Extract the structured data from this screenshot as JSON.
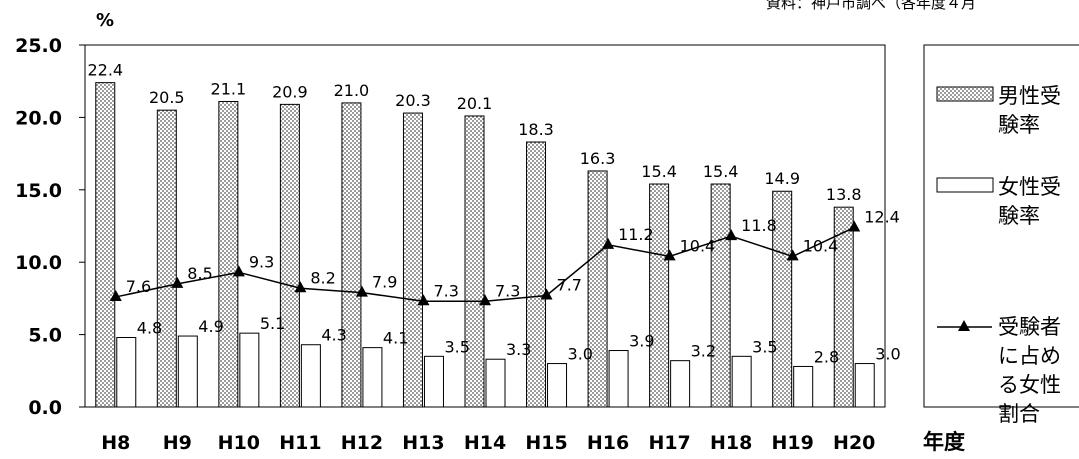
{
  "source": "資料：神戸市調べ（各年度４月",
  "chart_data": {
    "type": "bar",
    "unit": "%",
    "xlabel": "年度",
    "categories": [
      "H8",
      "H9",
      "H10",
      "H11",
      "H12",
      "H13",
      "H14",
      "H15",
      "H16",
      "H17",
      "H18",
      "H19",
      "H20"
    ],
    "ylim": [
      0,
      25
    ],
    "yticks": [
      "0.0",
      "5.0",
      "10.0",
      "15.0",
      "20.0",
      "25.0"
    ],
    "grid": false,
    "legend_position": "right",
    "series": [
      {
        "name_lines": [
          "男性受",
          "験率"
        ],
        "kind": "bar",
        "pattern": "dotted",
        "values": [
          22.4,
          20.5,
          21.1,
          20.9,
          21.0,
          20.3,
          20.1,
          18.3,
          16.3,
          15.4,
          15.4,
          14.9,
          13.8
        ]
      },
      {
        "name_lines": [
          "女性受",
          "験率"
        ],
        "kind": "bar",
        "pattern": "white",
        "values": [
          4.8,
          4.9,
          5.1,
          4.3,
          4.1,
          3.5,
          3.3,
          3.0,
          3.9,
          3.2,
          3.5,
          2.8,
          3.0
        ]
      },
      {
        "name_lines": [
          "受験者",
          "に占め",
          "る女性",
          "割合"
        ],
        "kind": "line",
        "marker": "triangle",
        "values": [
          7.6,
          8.5,
          9.3,
          8.2,
          7.9,
          7.3,
          7.3,
          7.7,
          11.2,
          10.4,
          11.8,
          10.4,
          12.4
        ]
      }
    ]
  }
}
